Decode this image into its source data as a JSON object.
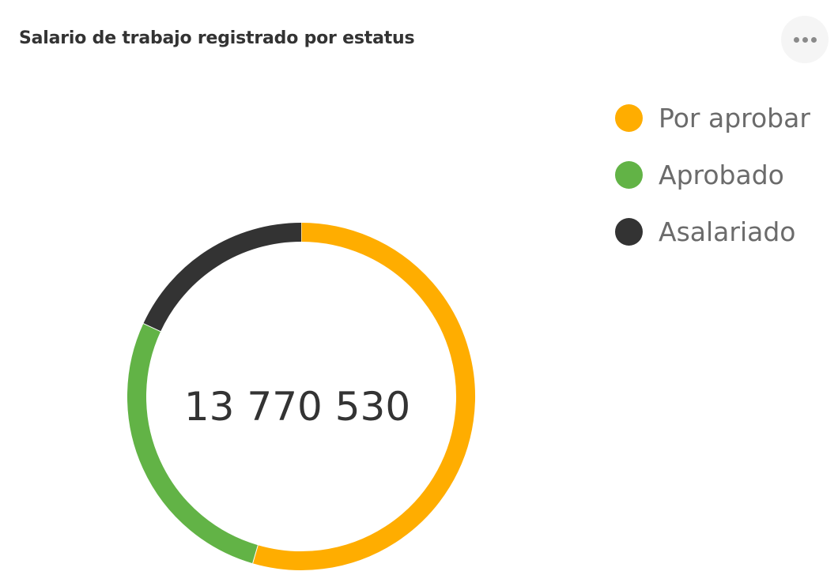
{
  "header": {
    "title": "Salario de trabajo registrado por estatus",
    "menu_icon": "more-horizontal-icon"
  },
  "chart_data": {
    "type": "pie",
    "variant": "donut",
    "title": "Salario de trabajo registrado por estatus",
    "center_label": "13 770 530",
    "total": 13770530,
    "legend_position": "top-right",
    "series": [
      {
        "name": "Por aprobar",
        "share": 0.545,
        "color": "#FFAD00"
      },
      {
        "name": "Aprobado",
        "share": 0.274,
        "color": "#62B346"
      },
      {
        "name": "Asalariado",
        "share": 0.181,
        "color": "#333333"
      }
    ]
  }
}
